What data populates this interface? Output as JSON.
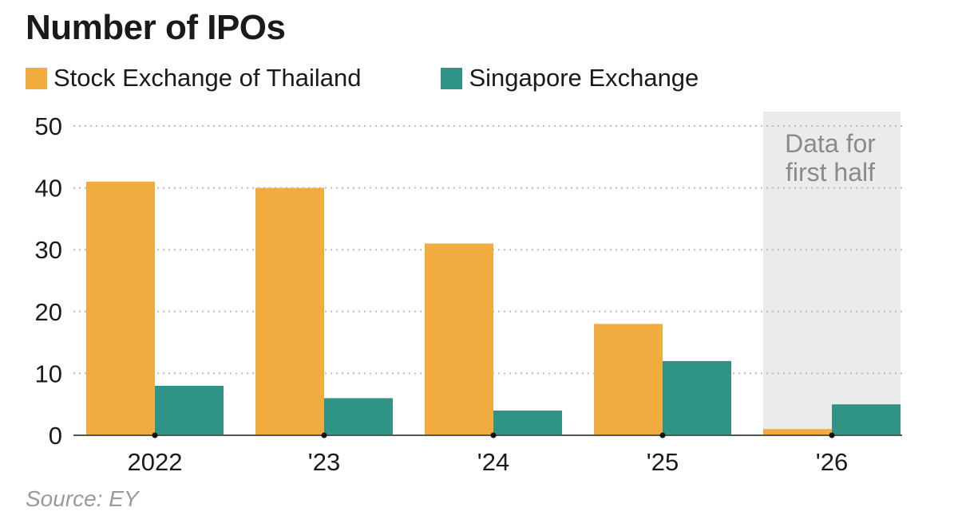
{
  "chart_data": {
    "type": "bar",
    "title": "Number of IPOs",
    "categories": [
      "2022",
      "'23",
      "'24",
      "'25",
      "'26"
    ],
    "series": [
      {
        "name": "Stock Exchange of Thailand",
        "values": [
          41,
          40,
          31,
          18,
          1
        ]
      },
      {
        "name": "Singapore Exchange",
        "values": [
          8,
          6,
          4,
          12,
          5
        ]
      }
    ],
    "ylim": [
      0,
      50
    ],
    "yticks": [
      0,
      10,
      20,
      30,
      40,
      50
    ],
    "grid": true,
    "legend": "top-left",
    "annotation": {
      "category": "'26",
      "lines": [
        "Data for",
        "first half"
      ]
    },
    "source": "Source: EY"
  },
  "colors": {
    "thailand": "#f0ac3e",
    "singapore": "#2f9485",
    "shade": "#ebebeb",
    "grid": "#bcbcbc"
  }
}
